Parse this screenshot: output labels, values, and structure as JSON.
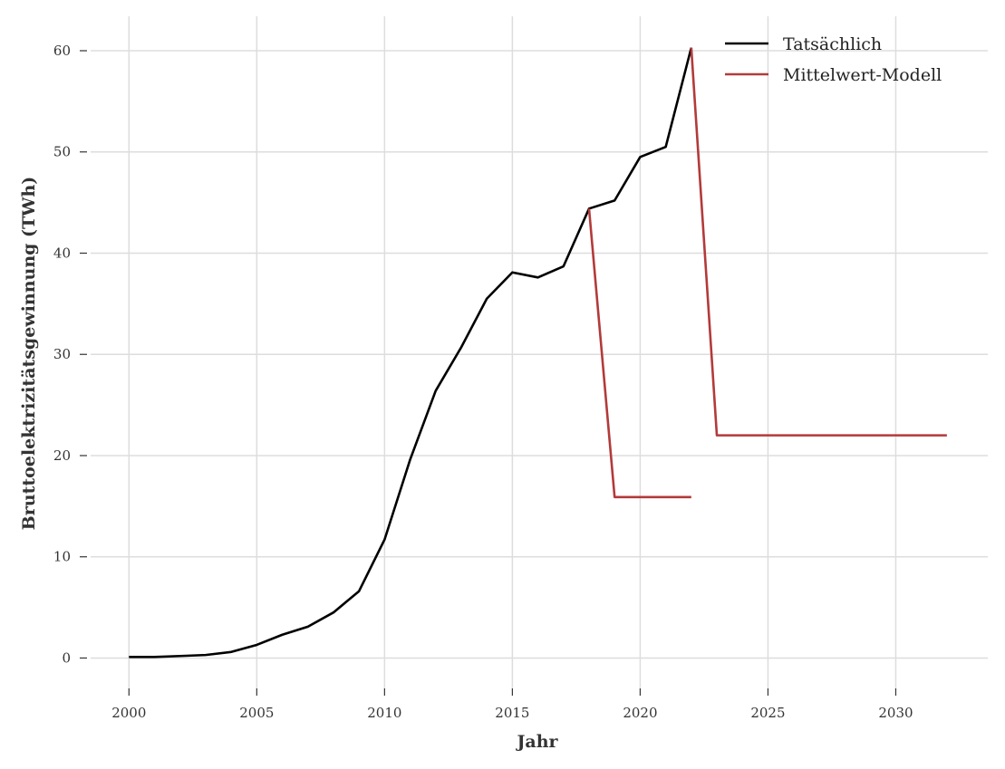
{
  "chart_data": {
    "type": "line",
    "xlabel": "Jahr",
    "ylabel": "Bruttoelektrizitätsgewinnung (TWh)",
    "xlim": [
      1998.5,
      2033.6
    ],
    "ylim": [
      -3.0,
      63.4
    ],
    "x_ticks": [
      2000,
      2005,
      2010,
      2015,
      2020,
      2025,
      2030
    ],
    "y_ticks": [
      0,
      10,
      20,
      30,
      40,
      50,
      60
    ],
    "grid": true,
    "legend_position": "top-right",
    "series": [
      {
        "name": "Tatsächlich",
        "color": "#000000",
        "x": [
          2000,
          2001,
          2002,
          2003,
          2004,
          2005,
          2006,
          2007,
          2008,
          2009,
          2010,
          2011,
          2012,
          2013,
          2014,
          2015,
          2016,
          2017,
          2018,
          2019,
          2020,
          2021,
          2022
        ],
        "y": [
          0.1,
          0.1,
          0.2,
          0.3,
          0.6,
          1.3,
          2.3,
          3.1,
          4.5,
          6.6,
          11.7,
          19.6,
          26.4,
          30.7,
          35.5,
          38.1,
          37.6,
          38.7,
          44.4,
          45.2,
          49.5,
          50.5,
          60.3
        ]
      },
      {
        "name": "Mittelwert-Modell",
        "color": "#b33a3a",
        "x": [
          2018,
          2019,
          2020,
          2021,
          2022,
          null,
          2022,
          2023,
          2024,
          2025,
          2026,
          2027,
          2028,
          2029,
          2030,
          2031,
          2032
        ],
        "y": [
          44.4,
          15.9,
          15.9,
          15.9,
          15.9,
          null,
          60.3,
          22.0,
          22.0,
          22.0,
          22.0,
          22.0,
          22.0,
          22.0,
          22.0,
          22.0,
          22.0
        ]
      }
    ]
  }
}
